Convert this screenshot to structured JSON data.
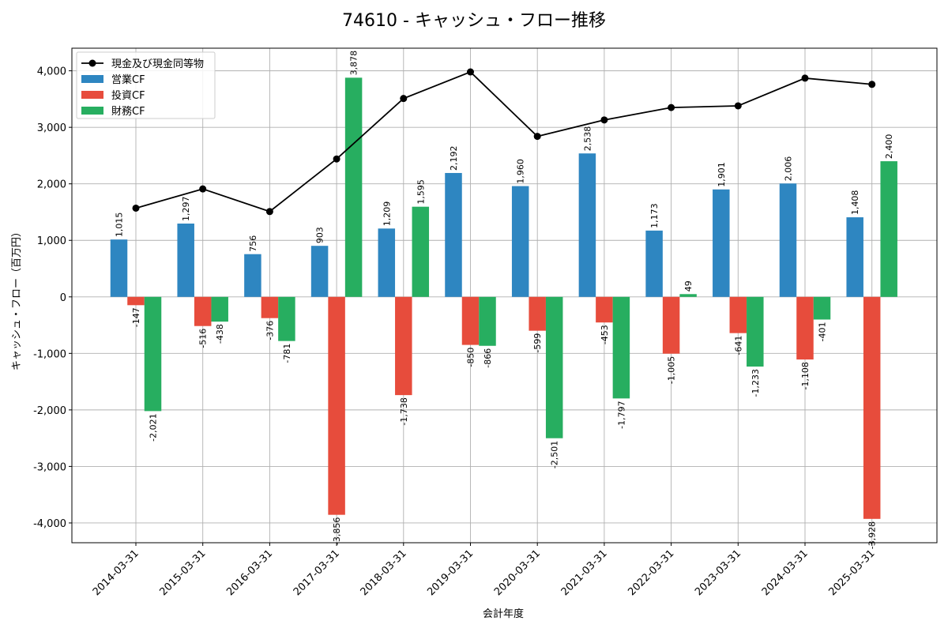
{
  "chart_data": {
    "type": "bar",
    "title": "74610 - キャッシュ・フロー推移",
    "xlabel": "会計年度",
    "ylabel": "キャッシュ・フロー（百万円）",
    "ylim": [
      -4350,
      4400
    ],
    "yticks": [
      -4000,
      -3000,
      -2000,
      -1000,
      0,
      1000,
      2000,
      3000,
      4000
    ],
    "ytick_labels": [
      "-4,000",
      "-3,000",
      "-2,000",
      "-1,000",
      "0",
      "1,000",
      "2,000",
      "3,000",
      "4,000"
    ],
    "grid": true,
    "legend_position": "top-left",
    "categories": [
      "2014-03-31",
      "2015-03-31",
      "2016-03-31",
      "2017-03-31",
      "2018-03-31",
      "2019-03-31",
      "2020-03-31",
      "2021-03-31",
      "2022-03-31",
      "2023-03-31",
      "2024-03-31",
      "2025-03-31"
    ],
    "series": [
      {
        "name": "営業CF",
        "type": "bar",
        "color": "#2e86c1",
        "values": [
          1015,
          1297,
          756,
          903,
          1209,
          2192,
          1960,
          2538,
          1173,
          1901,
          2006,
          1408
        ],
        "labels": [
          "1,015",
          "1,297",
          "756",
          "903",
          "1,209",
          "2,192",
          "1,960",
          "2,538",
          "1,173",
          "1,901",
          "2,006",
          "1,408"
        ]
      },
      {
        "name": "投資CF",
        "type": "bar",
        "color": "#e74c3c",
        "values": [
          -147,
          -516,
          -376,
          -3856,
          -1738,
          -850,
          -599,
          -453,
          -1005,
          -641,
          -1108,
          -3928
        ],
        "labels": [
          "-147",
          "-516",
          "-376",
          "-3,856",
          "-1,738",
          "-850",
          "-599",
          "-453",
          "-1,005",
          "-641",
          "-1,108",
          "-3,928"
        ]
      },
      {
        "name": "財務CF",
        "type": "bar",
        "color": "#27ae60",
        "values": [
          -2021,
          -438,
          -781,
          3878,
          1595,
          -866,
          -2501,
          -1797,
          49,
          -1233,
          -401,
          2400
        ],
        "labels": [
          "-2,021",
          "-438",
          "-781",
          "3,878",
          "1,595",
          "-866",
          "-2,501",
          "-1,797",
          "49",
          "-1,233",
          "-401",
          "2,400"
        ]
      },
      {
        "name": "現金及び現金同等物",
        "type": "line",
        "color": "#000000",
        "values": [
          1570,
          1910,
          1510,
          2440,
          3510,
          3980,
          2840,
          3130,
          3350,
          3380,
          3870,
          3760
        ]
      }
    ]
  }
}
